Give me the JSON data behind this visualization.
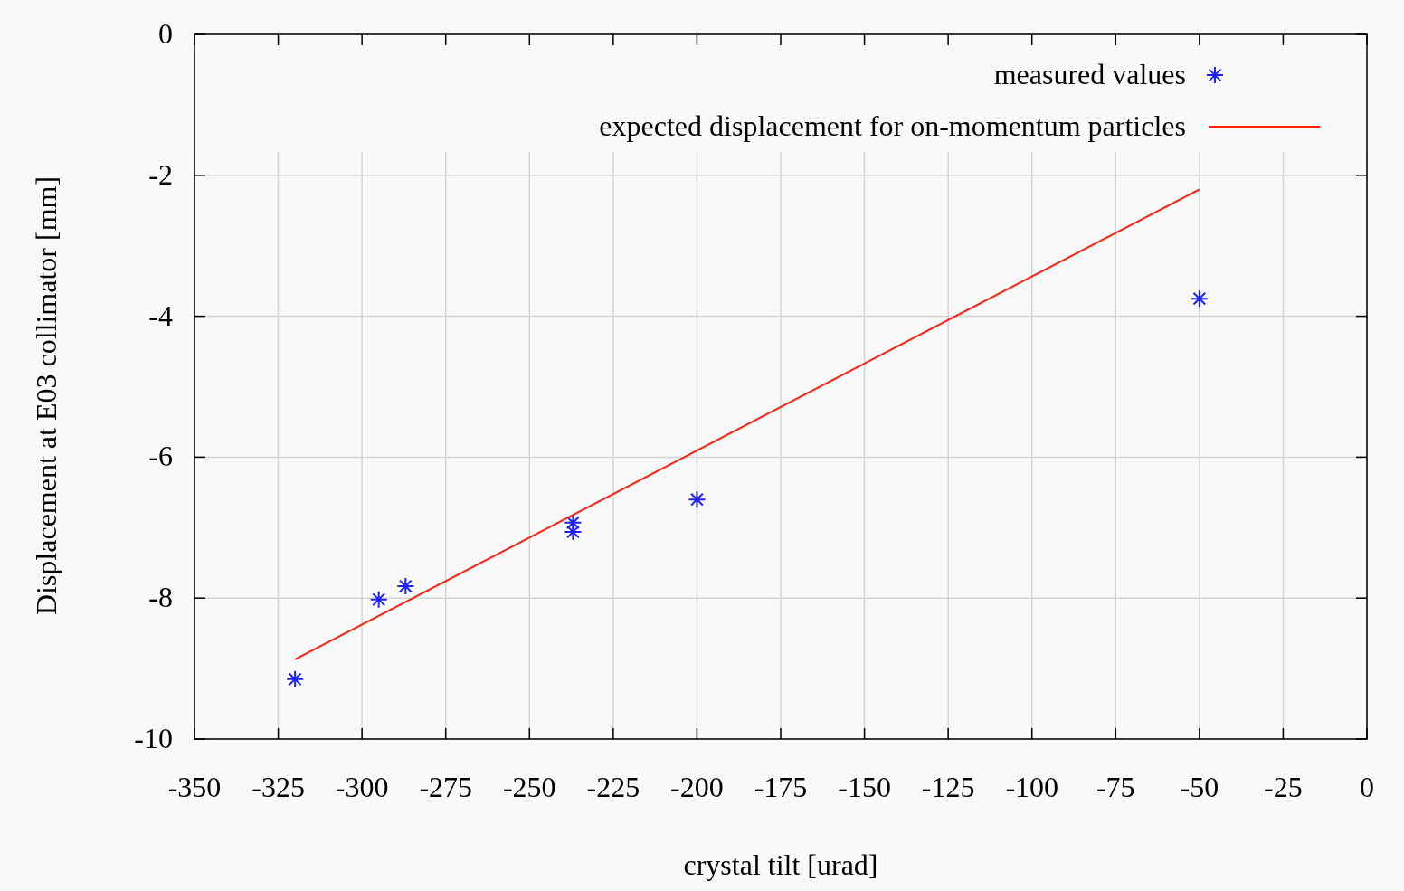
{
  "chart_data": {
    "type": "scatter",
    "xlabel": "crystal tilt [urad]",
    "ylabel": "Displacement at E03 collimator [mm]",
    "xlim": [
      -350,
      0
    ],
    "xticks": [
      -350,
      -325,
      -300,
      -275,
      -250,
      -225,
      -200,
      -175,
      -150,
      -125,
      -100,
      -75,
      -50,
      -25,
      0
    ],
    "ylim": [
      -10,
      0
    ],
    "yticks": [
      -10,
      -8,
      -6,
      -4,
      -2,
      0
    ],
    "grid": true,
    "legend": "top right",
    "series": [
      {
        "name": "measured values",
        "marker": "cross",
        "color": "#2020ff",
        "x": [
          -320,
          -295,
          -287,
          -237,
          -237,
          -200,
          -50
        ],
        "values": [
          -9.15,
          -8.02,
          -7.83,
          -6.93,
          -7.06,
          -6.6,
          -3.75
        ]
      },
      {
        "name": "expected displacement for on-momentum particles",
        "type": "line",
        "marker": "none",
        "color": "#ff2010",
        "x": [
          -320,
          -50
        ],
        "values": [
          -8.87,
          -2.2
        ]
      }
    ]
  }
}
